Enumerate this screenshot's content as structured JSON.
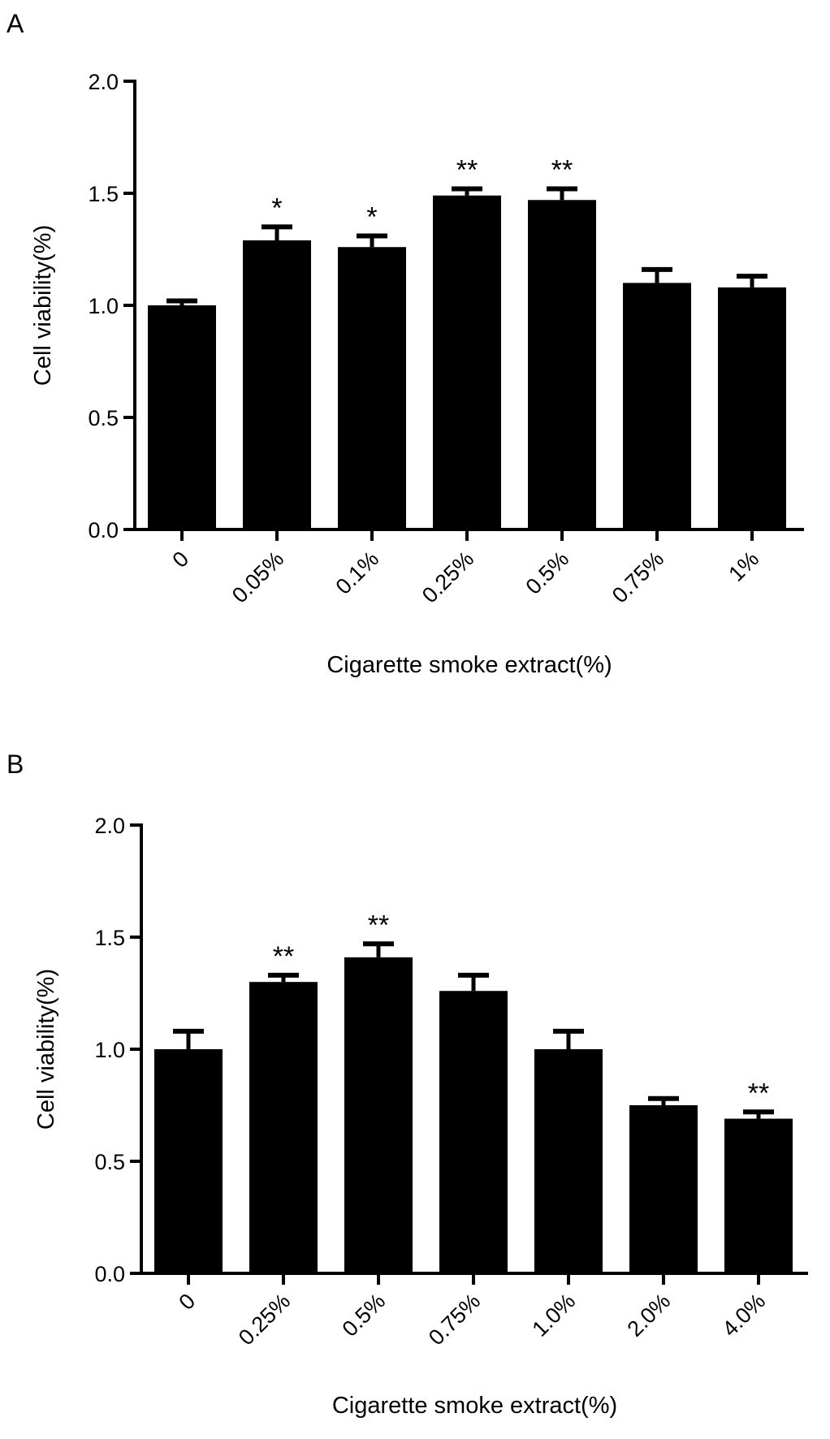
{
  "chart_data": [
    {
      "type": "bar",
      "panel": "A",
      "categories": [
        "0",
        "0.05%",
        "0.1%",
        "0.25%",
        "0.5%",
        "0.75%",
        "1%"
      ],
      "values": [
        1.0,
        1.29,
        1.26,
        1.49,
        1.47,
        1.1,
        1.08
      ],
      "errors": [
        0.02,
        0.06,
        0.05,
        0.03,
        0.05,
        0.06,
        0.05
      ],
      "significance": [
        "",
        "*",
        "*",
        "**",
        "**",
        "",
        ""
      ],
      "xlabel": "Cigarette smoke extract(%)",
      "ylabel": "Cell viability(%)",
      "ylim": [
        0.0,
        2.0
      ],
      "yticks": [
        "0.0",
        "0.5",
        "1.0",
        "1.5",
        "2.0"
      ],
      "bar_color": "#000000",
      "grid": false
    },
    {
      "type": "bar",
      "panel": "B",
      "categories": [
        "0",
        "0.25%",
        "0.5%",
        "0.75%",
        "1.0%",
        "2.0%",
        "4.0%"
      ],
      "values": [
        1.0,
        1.3,
        1.41,
        1.26,
        1.0,
        0.75,
        0.69
      ],
      "errors": [
        0.08,
        0.03,
        0.06,
        0.07,
        0.08,
        0.03,
        0.03
      ],
      "significance": [
        "",
        "**",
        "**",
        "",
        "",
        "",
        "**"
      ],
      "xlabel": "Cigarette smoke extract(%)",
      "ylabel": "Cell viability(%)",
      "ylim": [
        0.0,
        2.0
      ],
      "yticks": [
        "0.0",
        "0.5",
        "1.0",
        "1.5",
        "2.0"
      ],
      "bar_color": "#000000",
      "grid": false
    }
  ]
}
